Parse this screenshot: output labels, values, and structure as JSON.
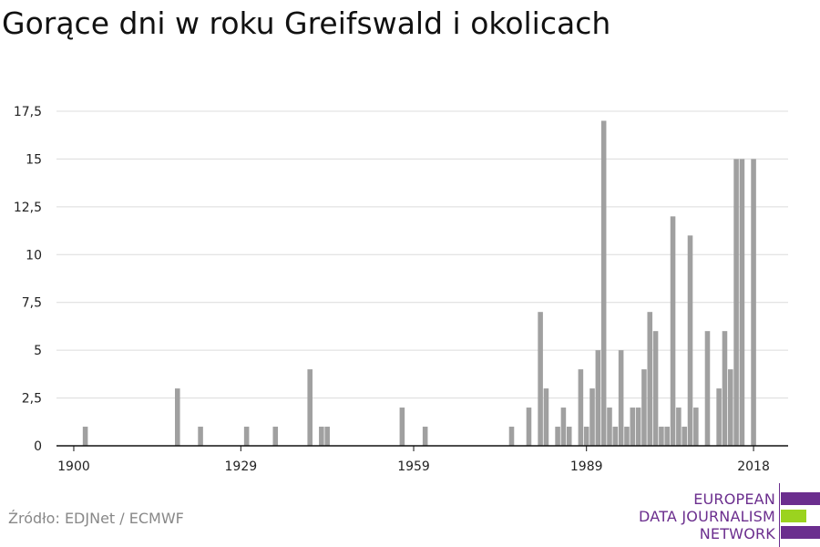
{
  "title": "Gorące dni w roku Greifswald i okolicach",
  "source": "Źródło: EDJNet / ECMWF",
  "logo": {
    "lines": [
      "EUROPEAN",
      "DATA JOURNALISM",
      "NETWORK"
    ],
    "colors": {
      "purple": "#6b2e8e",
      "green": "#9bd31f"
    }
  },
  "chart_data": {
    "type": "bar",
    "bar_color": "#a0a0a0",
    "x": [
      1902,
      1918,
      1922,
      1930,
      1935,
      1941,
      1943,
      1944,
      1957,
      1961,
      1976,
      1979,
      1981,
      1982,
      1984,
      1985,
      1986,
      1988,
      1989,
      1990,
      1991,
      1992,
      1993,
      1994,
      1995,
      1996,
      1997,
      1998,
      1999,
      2000,
      2001,
      2002,
      2003,
      2004,
      2005,
      2006,
      2007,
      2008,
      2010,
      2012,
      2013,
      2014,
      2015,
      2016,
      2018
    ],
    "values": [
      1,
      3,
      1,
      1,
      1,
      4,
      1,
      1,
      2,
      1,
      1,
      2,
      7,
      3,
      1,
      2,
      1,
      4,
      1,
      3,
      5,
      17,
      2,
      1,
      5,
      1,
      2,
      2,
      4,
      7,
      6,
      1,
      1,
      12,
      2,
      1,
      11,
      2,
      6,
      3,
      6,
      4,
      15,
      15,
      15
    ],
    "x_ticks": [
      "1900",
      "1929",
      "1959",
      "1989",
      "2018"
    ],
    "y_ticks": [
      "0",
      "2,5",
      "5",
      "7,5",
      "10",
      "12,5",
      "15",
      "17,5"
    ],
    "xlim": [
      1897,
      2024
    ],
    "ylim": [
      0,
      17.5
    ],
    "grid": true,
    "legend": "none"
  }
}
